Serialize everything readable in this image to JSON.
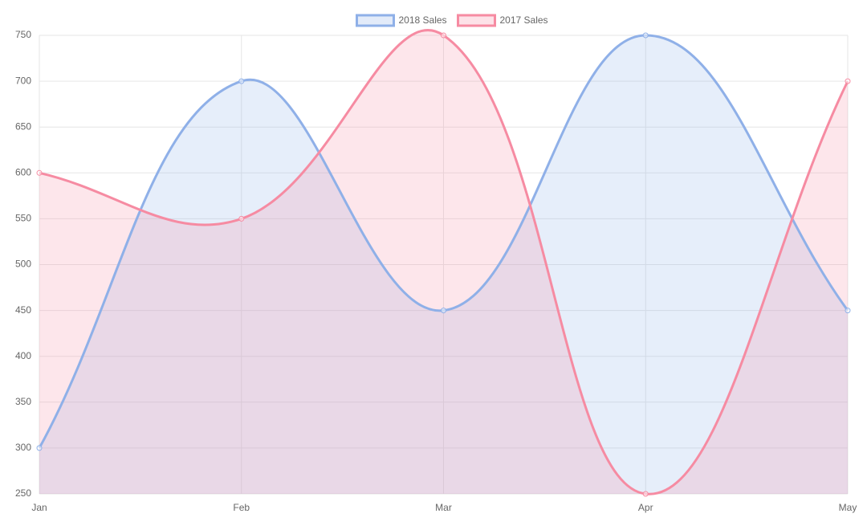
{
  "chart_data": {
    "type": "line",
    "categories": [
      "Jan",
      "Feb",
      "Mar",
      "Apr",
      "May"
    ],
    "series": [
      {
        "name": "2018 Sales",
        "color": "#8fb0e8",
        "values": [
          300,
          700,
          450,
          750,
          450
        ]
      },
      {
        "name": "2017 Sales",
        "color": "#f68ba2",
        "values": [
          600,
          550,
          750,
          250,
          700
        ]
      }
    ],
    "ylim": [
      250,
      750
    ],
    "yticks": [
      250,
      300,
      350,
      400,
      450,
      500,
      550,
      600,
      650,
      700,
      750
    ],
    "grid": true,
    "fill": true,
    "legend": "top"
  }
}
